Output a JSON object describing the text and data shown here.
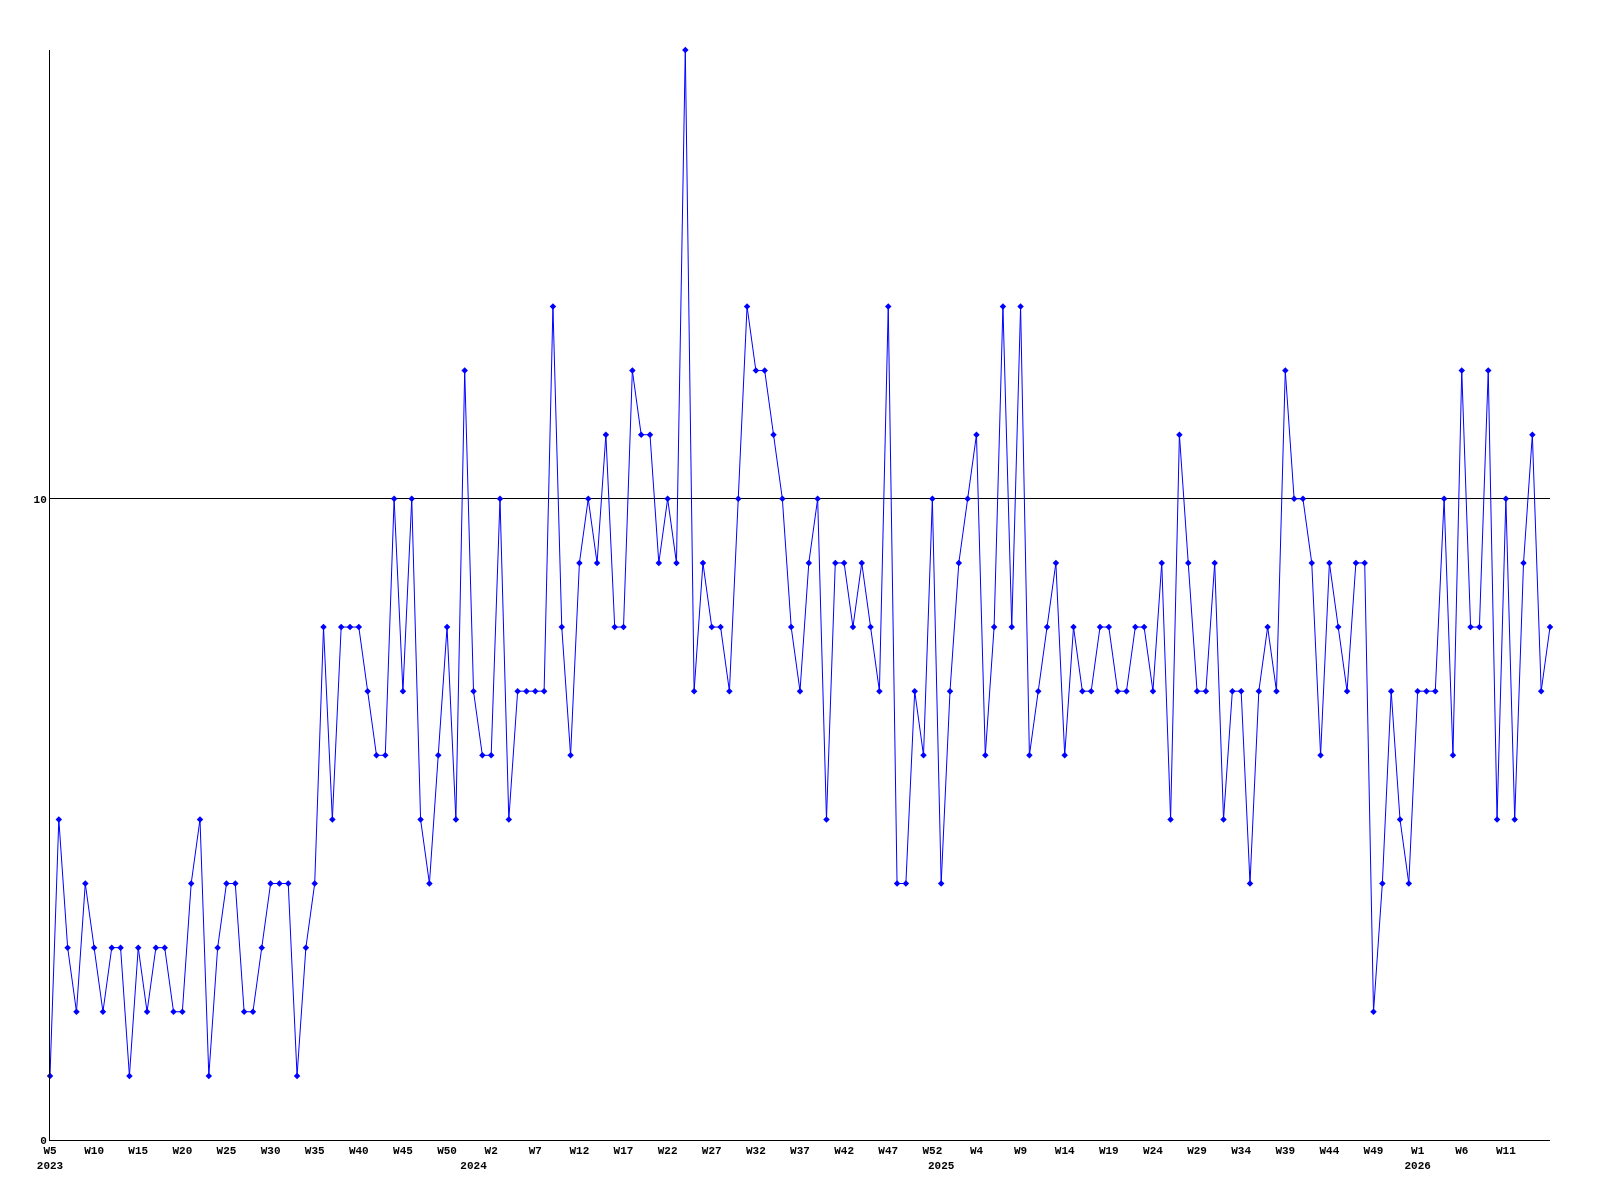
{
  "chart_data": {
    "type": "line",
    "categories": [
      "W5\n2023",
      null,
      null,
      null,
      null,
      "W10",
      null,
      null,
      null,
      null,
      "W15",
      null,
      null,
      null,
      null,
      "W20",
      null,
      null,
      null,
      null,
      "W25",
      null,
      null,
      null,
      null,
      "W30",
      null,
      null,
      null,
      null,
      "W35",
      null,
      null,
      null,
      null,
      "W40",
      null,
      null,
      null,
      null,
      "W45",
      null,
      null,
      null,
      null,
      "W50",
      null,
      null,
      "\n2024",
      null,
      "W2",
      null,
      null,
      null,
      null,
      "W7",
      null,
      null,
      null,
      null,
      "W12",
      null,
      null,
      null,
      null,
      "W17",
      null,
      null,
      null,
      null,
      "W22",
      null,
      null,
      null,
      null,
      "W27",
      null,
      null,
      null,
      null,
      "W32",
      null,
      null,
      null,
      null,
      "W37",
      null,
      null,
      null,
      null,
      "W42",
      null,
      null,
      null,
      null,
      "W47",
      null,
      null,
      null,
      null,
      "W52",
      "\n2025",
      null,
      null,
      null,
      "W4",
      null,
      null,
      null,
      null,
      "W9",
      null,
      null,
      null,
      null,
      "W14",
      null,
      null,
      null,
      null,
      "W19",
      null,
      null,
      null,
      null,
      "W24",
      null,
      null,
      null,
      null,
      "W29",
      null,
      null,
      null,
      null,
      "W34",
      null,
      null,
      null,
      null,
      "W39",
      null,
      null,
      null,
      null,
      "W44",
      null,
      null,
      null,
      null,
      "W49",
      null,
      null,
      null,
      null,
      "W1\n2026",
      null,
      null,
      null,
      null,
      "W6",
      null,
      null,
      null,
      null,
      "W11",
      null,
      null,
      null,
      null,
      null
    ],
    "series": [
      {
        "color": "#0000ff",
        "values": [
          1,
          5,
          3,
          2,
          4,
          3,
          2,
          3,
          3,
          1,
          3,
          2,
          3,
          3,
          2,
          2,
          4,
          5,
          1,
          3,
          4,
          4,
          2,
          2,
          3,
          4,
          4,
          4,
          1,
          3,
          4,
          8,
          5,
          8,
          8,
          8,
          7,
          6,
          6,
          10,
          7,
          10,
          5,
          4,
          6,
          8,
          5,
          12,
          7,
          6,
          6,
          10,
          5,
          7,
          7,
          7,
          7,
          13,
          8,
          6,
          9,
          10,
          9,
          11,
          8,
          8,
          12,
          11,
          11,
          9,
          10,
          9,
          17,
          7,
          9,
          8,
          8,
          7,
          10,
          13,
          12,
          12,
          11,
          10,
          8,
          7,
          9,
          10,
          5,
          9,
          9,
          8,
          9,
          8,
          7,
          13,
          4,
          4,
          7,
          6,
          10,
          4,
          7,
          9,
          10,
          11,
          6,
          8,
          13,
          8,
          13,
          6,
          7,
          8,
          9,
          6,
          8,
          7,
          7,
          8,
          8,
          7,
          7,
          8,
          8,
          7,
          9,
          5,
          11,
          9,
          7,
          7,
          9,
          5,
          7,
          7,
          4,
          7,
          8,
          7,
          12,
          10,
          10,
          9,
          6,
          9,
          8,
          7,
          9,
          9,
          2,
          4,
          7,
          5,
          4,
          7,
          7,
          7,
          10,
          6,
          12,
          8,
          8,
          12,
          5,
          10,
          5,
          9,
          11,
          7,
          8
        ]
      }
    ],
    "ylim": [
      0,
      17
    ],
    "yticks": [
      0,
      10
    ],
    "grid": "y",
    "marker": "diamond",
    "line_style": "solid",
    "legend": false
  }
}
